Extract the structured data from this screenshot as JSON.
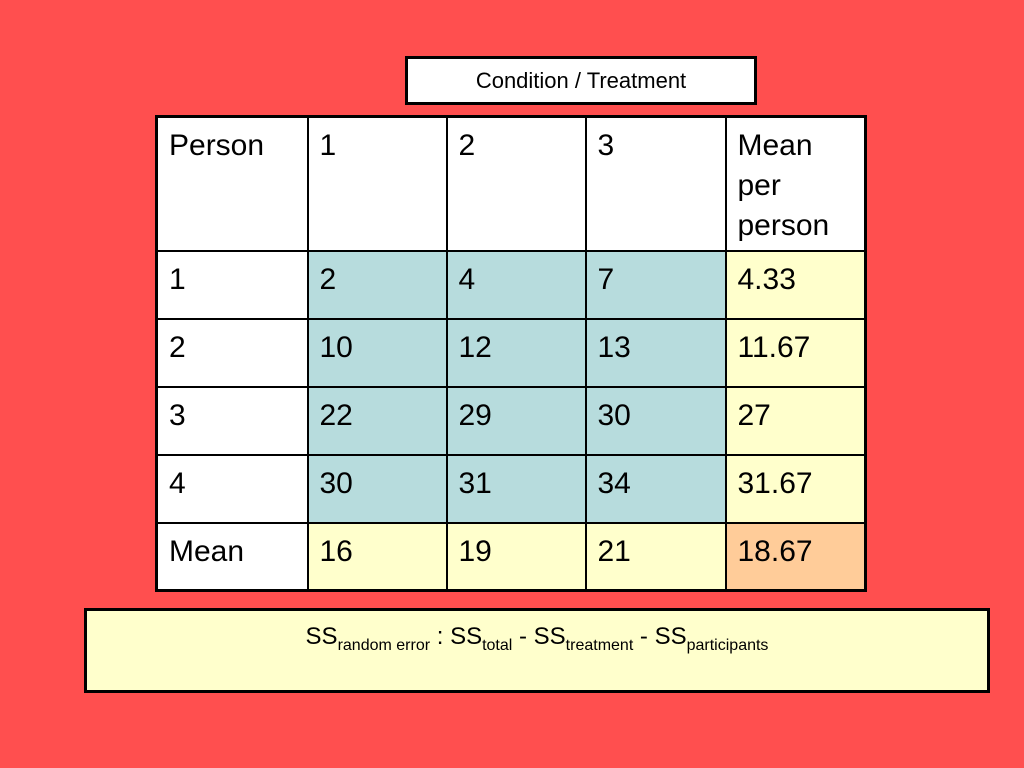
{
  "header_label": "Condition / Treatment",
  "table": {
    "header": [
      "Person",
      "1",
      "2",
      "3",
      "Mean per person"
    ],
    "rows": [
      [
        "1",
        "2",
        "4",
        "7",
        "4.33"
      ],
      [
        "2",
        "10",
        "12",
        "13",
        "11.67"
      ],
      [
        "3",
        "22",
        "29",
        "30",
        "27"
      ],
      [
        "4",
        "30",
        "31",
        "34",
        "31.67"
      ],
      [
        "Mean",
        "16",
        "19",
        "21",
        "18.67"
      ]
    ]
  },
  "formula": {
    "t1": "SS",
    "s1": "random error",
    "sep1": " : ",
    "t2": "SS",
    "s2": "total",
    "sep2": " - ",
    "t3": "SS",
    "s3": "treatment",
    "sep3": " - ",
    "t4": "SS",
    "s4": "participants"
  },
  "colors": {
    "background": "#ff4f4f",
    "data_cell": "#b7dcdd",
    "mean_cell": "#ffffcc",
    "grand_mean_cell": "#ffcc99"
  }
}
